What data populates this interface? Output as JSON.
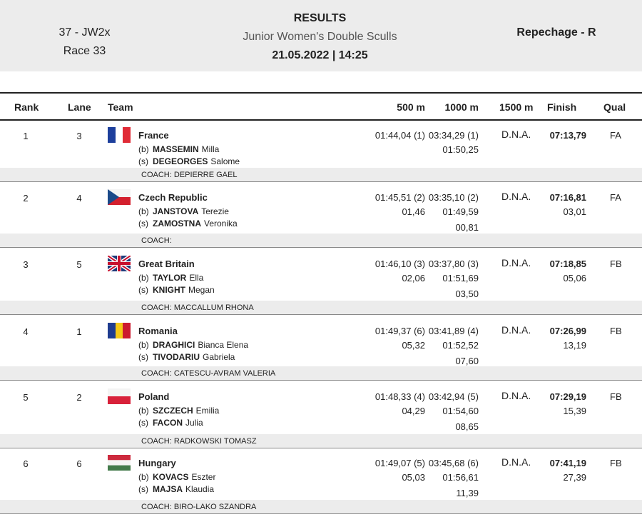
{
  "header": {
    "event_code": "37 - JW2x",
    "race": "Race 33",
    "results_title": "RESULTS",
    "event_name": "Junior Women's Double Sculls",
    "datetime": "21.05.2022 | 14:25",
    "phase": "Repechage - R"
  },
  "columns": {
    "rank": "Rank",
    "lane": "Lane",
    "team": "Team",
    "m500": "500 m",
    "m1000": "1000 m",
    "m1500": "1500 m",
    "finish": "Finish",
    "qual": "Qual"
  },
  "rows": [
    {
      "rank": "1",
      "lane": "3",
      "country": "France",
      "flag": "france-flag-icon",
      "crew": [
        {
          "side": "(b)",
          "surname": "MASSEMIN",
          "first": "Milla"
        },
        {
          "side": "(s)",
          "surname": "DEGEORGES",
          "first": "Salome"
        }
      ],
      "m500": "01:44,04 (1)",
      "m500_diff": "",
      "m1000": "03:34,29 (1)",
      "m1000_split": "01:50,25",
      "m1000_diff": "",
      "m1500": "D.N.A.",
      "finish": "07:13,79",
      "finish_diff": "",
      "qual": "FA",
      "coach": "COACH: DEPIERRE GAEL"
    },
    {
      "rank": "2",
      "lane": "4",
      "country": "Czech Republic",
      "flag": "czech-flag-icon",
      "crew": [
        {
          "side": "(b)",
          "surname": "JANSTOVA",
          "first": "Terezie"
        },
        {
          "side": "(s)",
          "surname": "ZAMOSTNA",
          "first": "Veronika"
        }
      ],
      "m500": "01:45,51 (2)",
      "m500_diff": "01,46",
      "m1000": "03:35,10 (2)",
      "m1000_split": "01:49,59",
      "m1000_diff": "00,81",
      "m1500": "D.N.A.",
      "finish": "07:16,81",
      "finish_diff": "03,01",
      "qual": "FA",
      "coach": "COACH:"
    },
    {
      "rank": "3",
      "lane": "5",
      "country": "Great Britain",
      "flag": "great-britain-flag-icon",
      "crew": [
        {
          "side": "(b)",
          "surname": "TAYLOR",
          "first": "Ella"
        },
        {
          "side": "(s)",
          "surname": "KNIGHT",
          "first": "Megan"
        }
      ],
      "m500": "01:46,10 (3)",
      "m500_diff": "02,06",
      "m1000": "03:37,80 (3)",
      "m1000_split": "01:51,69",
      "m1000_diff": "03,50",
      "m1500": "D.N.A.",
      "finish": "07:18,85",
      "finish_diff": "05,06",
      "qual": "FB",
      "coach": "COACH: MACCALLUM RHONA"
    },
    {
      "rank": "4",
      "lane": "1",
      "country": "Romania",
      "flag": "romania-flag-icon",
      "crew": [
        {
          "side": "(b)",
          "surname": "DRAGHICI",
          "first": "Bianca Elena"
        },
        {
          "side": "(s)",
          "surname": "TIVODARIU",
          "first": "Gabriela"
        }
      ],
      "m500": "01:49,37 (6)",
      "m500_diff": "05,32",
      "m1000": "03:41,89 (4)",
      "m1000_split": "01:52,52",
      "m1000_diff": "07,60",
      "m1500": "D.N.A.",
      "finish": "07:26,99",
      "finish_diff": "13,19",
      "qual": "FB",
      "coach": "COACH: CATESCU-AVRAM VALERIA"
    },
    {
      "rank": "5",
      "lane": "2",
      "country": "Poland",
      "flag": "poland-flag-icon",
      "crew": [
        {
          "side": "(b)",
          "surname": "SZCZECH",
          "first": "Emilia"
        },
        {
          "side": "(s)",
          "surname": "FACON",
          "first": "Julia"
        }
      ],
      "m500": "01:48,33 (4)",
      "m500_diff": "04,29",
      "m1000": "03:42,94 (5)",
      "m1000_split": "01:54,60",
      "m1000_diff": "08,65",
      "m1500": "D.N.A.",
      "finish": "07:29,19",
      "finish_diff": "15,39",
      "qual": "FB",
      "coach": "COACH: RADKOWSKI TOMASZ"
    },
    {
      "rank": "6",
      "lane": "6",
      "country": "Hungary",
      "flag": "hungary-flag-icon",
      "crew": [
        {
          "side": "(b)",
          "surname": "KOVACS",
          "first": "Eszter"
        },
        {
          "side": "(s)",
          "surname": "MAJSA",
          "first": "Klaudia"
        }
      ],
      "m500": "01:49,07 (5)",
      "m500_diff": "05,03",
      "m1000": "03:45,68 (6)",
      "m1000_split": "01:56,61",
      "m1000_diff": "11,39",
      "m1500": "D.N.A.",
      "finish": "07:41,19",
      "finish_diff": "27,39",
      "qual": "FB",
      "coach": "COACH: BIRO-LAKO SZANDRA"
    }
  ]
}
